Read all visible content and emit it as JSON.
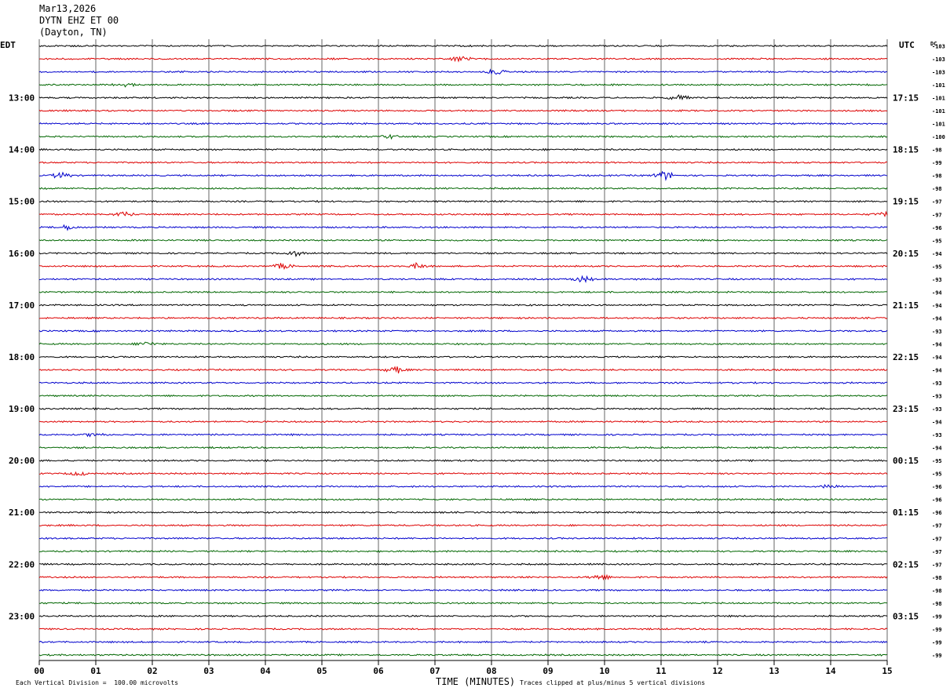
{
  "header": {
    "date": "Mar13,2026",
    "station": "DYTN EHZ ET 00",
    "location": "(Dayton, TN)"
  },
  "chart_data": {
    "type": "line",
    "subtype": "helicorder",
    "left_axis_label": "EDT",
    "right_axis_label": "UTC",
    "dc_label": "DC",
    "xlabel": "TIME (MINUTES)",
    "xlim": [
      0,
      15
    ],
    "x_ticks": [
      "00",
      "01",
      "02",
      "03",
      "04",
      "05",
      "06",
      "07",
      "08",
      "09",
      "10",
      "11",
      "12",
      "13",
      "14",
      "15"
    ],
    "rows_per_hour": 4,
    "trace_colors": [
      "#000000",
      "#dd0000",
      "#0000cc",
      "#006600"
    ],
    "left_time_labels": [
      "13:00",
      "14:00",
      "15:00",
      "16:00",
      "17:00",
      "18:00",
      "19:00",
      "20:00",
      "21:00",
      "22:00",
      "23:00"
    ],
    "right_time_labels": [
      "17:15",
      "18:15",
      "19:15",
      "20:15",
      "21:15",
      "22:15",
      "23:15",
      "00:15",
      "01:15",
      "02:15",
      "03:15"
    ],
    "dc_offsets": [
      "-103",
      "-103",
      "-103",
      "-101",
      "-101",
      "-101",
      "-101",
      "-100",
      "-98",
      "-99",
      "-98",
      "-98",
      "-97",
      "-97",
      "-96",
      "-95",
      "-94",
      "-95",
      "-93",
      "-94",
      "-94",
      "-94",
      "-93",
      "-94",
      "-94",
      "-94",
      "-93",
      "-93",
      "-93",
      "-94",
      "-93",
      "-94",
      "-95",
      "-95",
      "-96",
      "-96",
      "-96",
      "-97",
      "-97",
      "-97",
      "-97",
      "-98",
      "-98",
      "-98",
      "-99",
      "-99",
      "-99",
      "-99"
    ],
    "events": [
      {
        "row": 1,
        "minute": 7.45,
        "amp": 5
      },
      {
        "row": 2,
        "minute": 8.1,
        "amp": 6
      },
      {
        "row": 3,
        "minute": 1.5,
        "amp": 4
      },
      {
        "row": 4,
        "minute": 11.3,
        "amp": 6
      },
      {
        "row": 7,
        "minute": 6.2,
        "amp": 4
      },
      {
        "row": 10,
        "minute": 0.4,
        "amp": 6
      },
      {
        "row": 10,
        "minute": 11.05,
        "amp": 9
      },
      {
        "row": 13,
        "minute": 1.5,
        "amp": 5
      },
      {
        "row": 13,
        "minute": 14.9,
        "amp": 4
      },
      {
        "row": 14,
        "minute": 0.5,
        "amp": 5
      },
      {
        "row": 16,
        "minute": 4.5,
        "amp": 5
      },
      {
        "row": 17,
        "minute": 4.3,
        "amp": 5
      },
      {
        "row": 17,
        "minute": 6.7,
        "amp": 5
      },
      {
        "row": 18,
        "minute": 9.6,
        "amp": 6
      },
      {
        "row": 23,
        "minute": 1.9,
        "amp": 5
      },
      {
        "row": 25,
        "minute": 6.3,
        "amp": 6
      },
      {
        "row": 30,
        "minute": 1.0,
        "amp": 4
      },
      {
        "row": 33,
        "minute": 0.7,
        "amp": 4
      },
      {
        "row": 34,
        "minute": 14.0,
        "amp": 4
      },
      {
        "row": 41,
        "minute": 9.9,
        "amp": 5
      }
    ]
  },
  "footer": {
    "vertical_division": "Each Vertical Division =  100.00 microvolts",
    "clip_note": "Traces clipped at plus/minus 5 vertical divisions"
  }
}
